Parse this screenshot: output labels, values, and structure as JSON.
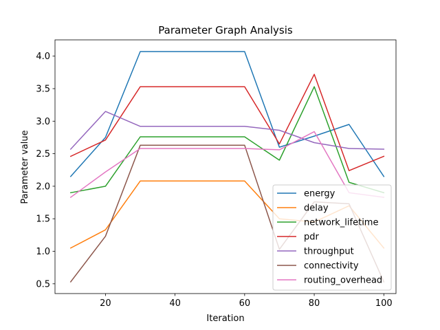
{
  "chart_data": {
    "type": "line",
    "title": "Parameter Graph Analysis",
    "xlabel": "Iteration",
    "ylabel": "Parameter value",
    "xlim": [
      5.5,
      103.5
    ],
    "ylim": [
      0.35,
      4.25
    ],
    "xticks": [
      20,
      40,
      60,
      80,
      100
    ],
    "yticks": [
      0.5,
      1.0,
      1.5,
      2.0,
      2.5,
      3.0,
      3.5,
      4.0
    ],
    "x": [
      10,
      20,
      30,
      40,
      50,
      60,
      70,
      80,
      90,
      100
    ],
    "grid": false,
    "legend_position": "lower right",
    "series": [
      {
        "name": "energy",
        "color": "#1f77b4",
        "values": [
          2.15,
          2.75,
          4.07,
          4.07,
          4.07,
          4.07,
          2.6,
          2.77,
          2.95,
          2.15
        ]
      },
      {
        "name": "delay",
        "color": "#ff7f0e",
        "values": [
          1.05,
          1.33,
          2.08,
          2.08,
          2.08,
          2.08,
          1.5,
          1.45,
          1.7,
          1.05
        ]
      },
      {
        "name": "network_lifetime",
        "color": "#2ca02c",
        "values": [
          1.9,
          2.0,
          2.76,
          2.76,
          2.76,
          2.76,
          2.4,
          3.53,
          2.06,
          1.9
        ]
      },
      {
        "name": "pdr",
        "color": "#d62728",
        "values": [
          2.46,
          2.71,
          3.53,
          3.53,
          3.53,
          3.53,
          2.65,
          3.72,
          2.24,
          2.46
        ]
      },
      {
        "name": "throughput",
        "color": "#9467bd",
        "values": [
          2.57,
          3.15,
          2.92,
          2.92,
          2.92,
          2.92,
          2.86,
          2.67,
          2.58,
          2.57
        ]
      },
      {
        "name": "connectivity",
        "color": "#8c564b",
        "values": [
          0.53,
          1.23,
          2.63,
          2.63,
          2.63,
          2.63,
          1.03,
          1.76,
          1.73,
          0.53
        ]
      },
      {
        "name": "routing_overhead",
        "color": "#e377c2",
        "values": [
          1.83,
          2.22,
          2.58,
          2.58,
          2.58,
          2.58,
          2.56,
          2.84,
          1.9,
          1.83
        ]
      }
    ]
  }
}
